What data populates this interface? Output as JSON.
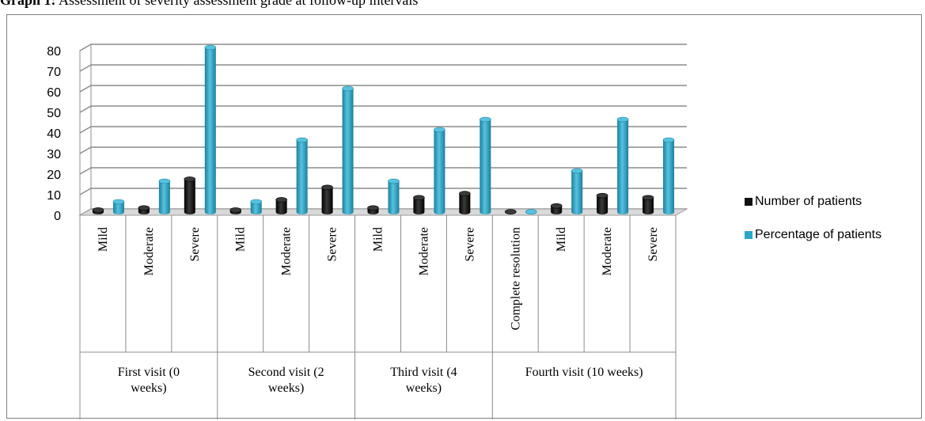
{
  "caption": {
    "label": "Graph 1:",
    "text": "Assessment of severity assessment grade at follow-up intervals"
  },
  "colors": {
    "number_of_patients": "#111111",
    "percentage_of_patients": "#2aa6c8",
    "gridline": "#8c8c8c",
    "wall": "#ffffff",
    "floor": "#d9d9d9"
  },
  "chart_data": {
    "type": "bar",
    "title": "",
    "xlabel": "",
    "ylabel": "",
    "ylim": [
      0,
      80
    ],
    "yticks": [
      "0",
      "10",
      "20",
      "30",
      "40",
      "50",
      "60",
      "70",
      "80"
    ],
    "grid": true,
    "legend_position": "right",
    "categories": [
      "Mild",
      "Moderate",
      "Severe",
      "Mild",
      "Moderate",
      "Severe",
      "Mild",
      "Moderate",
      "Severe",
      "Complete resolution",
      "Mild",
      "Moderate",
      "Severe"
    ],
    "groups": [
      {
        "label": "First visit (0 weeks)",
        "lines": [
          "First visit (0",
          "weeks)"
        ],
        "span": 3
      },
      {
        "label": "Second visit (2 weeks)",
        "lines": [
          "Second visit (2",
          "weeks)"
        ],
        "span": 3
      },
      {
        "label": "Third visit (4 weeks)",
        "lines": [
          "Third visit (4",
          "weeks)"
        ],
        "span": 3
      },
      {
        "label": "Fourth visit (10 weeks)",
        "lines": [
          "Fourth visit (10 weeks)"
        ],
        "span": 4
      }
    ],
    "series": [
      {
        "name": "Number of patients",
        "values": [
          1,
          2,
          16,
          1,
          6,
          12,
          2,
          7,
          9,
          0,
          3,
          8,
          7
        ]
      },
      {
        "name": "Percentage of patients",
        "values": [
          5,
          15,
          80,
          5,
          35,
          60,
          15,
          40,
          45,
          0,
          20,
          45,
          35
        ]
      }
    ]
  }
}
